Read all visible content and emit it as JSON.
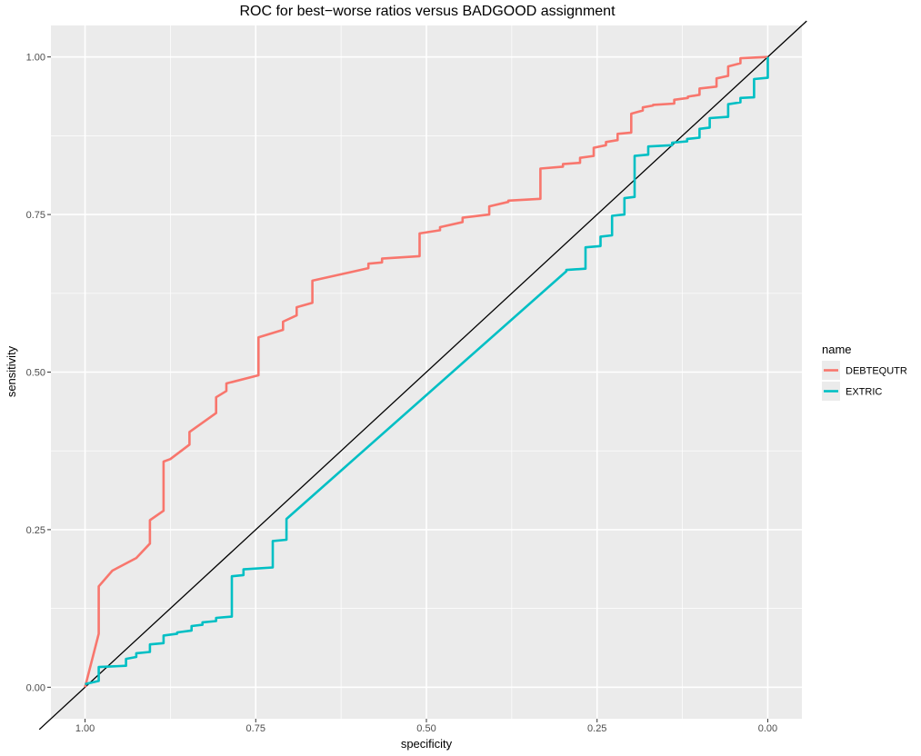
{
  "chart_data": {
    "type": "line",
    "title": "ROC for best−worse ratios versus BADGOOD assignment",
    "xlabel": "specificity",
    "ylabel": "sensitivity",
    "x_reversed": true,
    "xlim": [
      1.05,
      -0.05
    ],
    "ylim": [
      -0.05,
      1.05
    ],
    "x_ticks": [
      1.0,
      0.75,
      0.5,
      0.25,
      0.0
    ],
    "x_tick_labels": [
      "1.00",
      "0.75",
      "0.50",
      "0.25",
      "0.00"
    ],
    "y_ticks": [
      0.0,
      0.25,
      0.5,
      0.75,
      1.0
    ],
    "y_tick_labels": [
      "0.00",
      "0.25",
      "0.50",
      "0.75",
      "1.00"
    ],
    "grid": true,
    "legend": {
      "title": "name",
      "placement": "right"
    },
    "reference_line": {
      "x": [
        1.05,
        -0.05
      ],
      "y": [
        -0.05,
        1.05
      ],
      "color": "#000000"
    },
    "series": [
      {
        "name": "DEBTEQUTR",
        "color": "#F8766D",
        "x": [
          1.0,
          0.98,
          0.98,
          0.96,
          0.925,
          0.905,
          0.905,
          0.885,
          0.885,
          0.875,
          0.847,
          0.847,
          0.808,
          0.808,
          0.793,
          0.793,
          0.746,
          0.746,
          0.71,
          0.71,
          0.69,
          0.69,
          0.667,
          0.667,
          0.585,
          0.585,
          0.565,
          0.565,
          0.51,
          0.51,
          0.48,
          0.48,
          0.447,
          0.447,
          0.408,
          0.408,
          0.38,
          0.38,
          0.333,
          0.333,
          0.3,
          0.3,
          0.275,
          0.275,
          0.255,
          0.255,
          0.237,
          0.237,
          0.22,
          0.22,
          0.2,
          0.2,
          0.183,
          0.183,
          0.168,
          0.168,
          0.137,
          0.137,
          0.117,
          0.117,
          0.1,
          0.1,
          0.075,
          0.075,
          0.058,
          0.058,
          0.04,
          0.04,
          0.0
        ],
        "y": [
          0.0,
          0.085,
          0.16,
          0.185,
          0.205,
          0.228,
          0.265,
          0.28,
          0.358,
          0.362,
          0.385,
          0.405,
          0.435,
          0.46,
          0.47,
          0.482,
          0.495,
          0.555,
          0.567,
          0.58,
          0.59,
          0.603,
          0.61,
          0.645,
          0.665,
          0.672,
          0.674,
          0.68,
          0.684,
          0.72,
          0.725,
          0.73,
          0.738,
          0.745,
          0.75,
          0.763,
          0.77,
          0.772,
          0.775,
          0.823,
          0.826,
          0.83,
          0.832,
          0.84,
          0.843,
          0.856,
          0.86,
          0.865,
          0.868,
          0.878,
          0.88,
          0.91,
          0.915,
          0.92,
          0.923,
          0.924,
          0.926,
          0.932,
          0.935,
          0.937,
          0.94,
          0.95,
          0.953,
          0.966,
          0.97,
          0.985,
          0.99,
          0.998,
          1.0
        ]
      },
      {
        "name": "EXTRIC",
        "color": "#00BFC4",
        "x": [
          1.0,
          0.98,
          0.98,
          0.94,
          0.94,
          0.925,
          0.925,
          0.905,
          0.905,
          0.885,
          0.885,
          0.865,
          0.865,
          0.844,
          0.844,
          0.828,
          0.828,
          0.808,
          0.808,
          0.785,
          0.785,
          0.768,
          0.768,
          0.725,
          0.725,
          0.705,
          0.705,
          0.295,
          0.295,
          0.267,
          0.267,
          0.245,
          0.245,
          0.228,
          0.228,
          0.21,
          0.21,
          0.195,
          0.195,
          0.175,
          0.175,
          0.14,
          0.14,
          0.118,
          0.118,
          0.1,
          0.1,
          0.085,
          0.085,
          0.058,
          0.058,
          0.04,
          0.04,
          0.02,
          0.02,
          0.0,
          0.0
        ],
        "y": [
          0.005,
          0.01,
          0.032,
          0.034,
          0.045,
          0.048,
          0.054,
          0.056,
          0.068,
          0.07,
          0.082,
          0.085,
          0.087,
          0.09,
          0.097,
          0.099,
          0.103,
          0.105,
          0.11,
          0.112,
          0.176,
          0.178,
          0.187,
          0.19,
          0.232,
          0.234,
          0.267,
          0.66,
          0.662,
          0.664,
          0.698,
          0.7,
          0.715,
          0.717,
          0.748,
          0.75,
          0.776,
          0.778,
          0.843,
          0.845,
          0.858,
          0.86,
          0.864,
          0.866,
          0.87,
          0.872,
          0.886,
          0.888,
          0.903,
          0.905,
          0.925,
          0.928,
          0.935,
          0.936,
          0.965,
          0.967,
          1.0
        ]
      }
    ]
  }
}
